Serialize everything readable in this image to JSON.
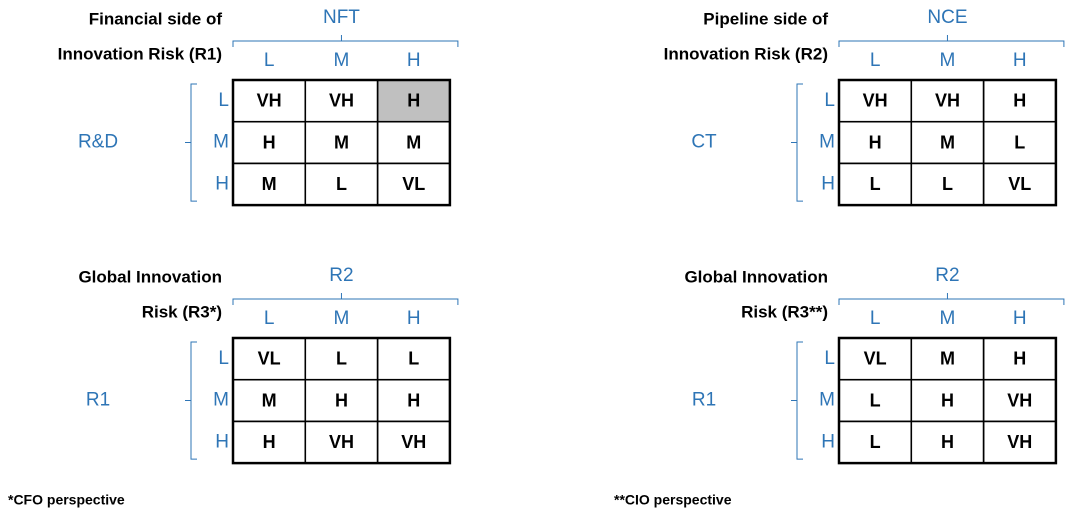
{
  "matrices": [
    {
      "title": [
        "Financial side of",
        "Innovation Risk (R1)"
      ],
      "column_axis": "NFT",
      "column_levels": [
        "L",
        "M",
        "H"
      ],
      "row_axis": "R&D",
      "row_levels": [
        "L",
        "M",
        "H"
      ],
      "cells": [
        [
          "VH",
          "VH",
          "H"
        ],
        [
          "H",
          "M",
          "M"
        ],
        [
          "M",
          "L",
          "VL"
        ]
      ]
    },
    {
      "title": [
        "Pipeline side of",
        "Innovation Risk (R2)"
      ],
      "column_axis": "NCE",
      "column_levels": [
        "L",
        "M",
        "H"
      ],
      "row_axis": "CT",
      "row_levels": [
        "L",
        "M",
        "H"
      ],
      "cells": [
        [
          "VH",
          "VH",
          "H"
        ],
        [
          "H",
          "M",
          "L"
        ],
        [
          "L",
          "L",
          "VL"
        ]
      ]
    },
    {
      "title": [
        "Global Innovation",
        "Risk (R3*)"
      ],
      "column_axis": "R2",
      "column_levels": [
        "L",
        "M",
        "H"
      ],
      "row_axis": "R1",
      "row_levels": [
        "L",
        "M",
        "H"
      ],
      "cells": [
        [
          "VL",
          "L",
          "L"
        ],
        [
          "M",
          "H",
          "H"
        ],
        [
          "H",
          "VH",
          "VH"
        ]
      ]
    },
    {
      "title": [
        "Global Innovation",
        "Risk (R3**)"
      ],
      "column_axis": "R2",
      "column_levels": [
        "L",
        "M",
        "H"
      ],
      "row_axis": "R1",
      "row_levels": [
        "L",
        "M",
        "H"
      ],
      "cells": [
        [
          "VL",
          "M",
          "H"
        ],
        [
          "L",
          "H",
          "VH"
        ],
        [
          "L",
          "H",
          "VH"
        ]
      ]
    }
  ],
  "footnotes": [
    "*CFO perspective",
    "**CIO perspective"
  ]
}
